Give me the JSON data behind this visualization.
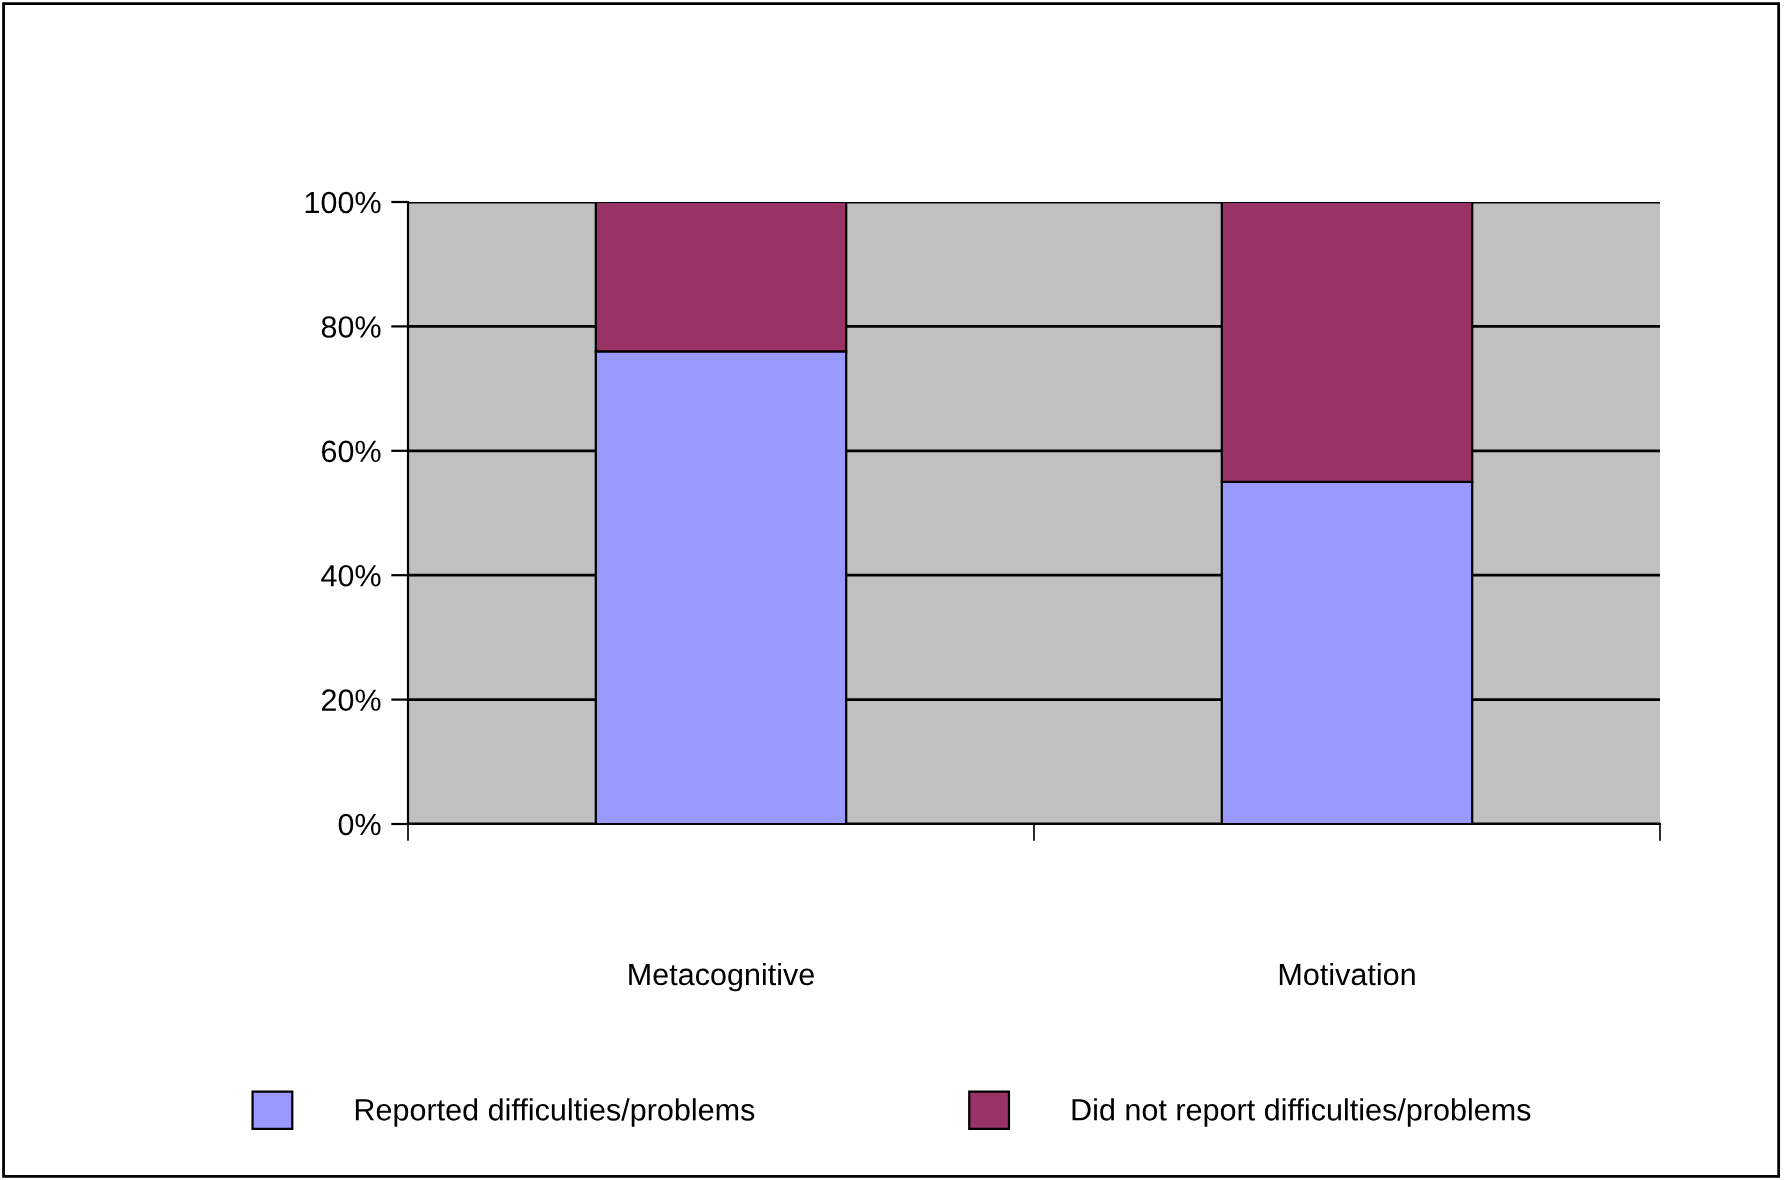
{
  "chart_data": {
    "type": "bar",
    "stacked": true,
    "categories": [
      "Metacognitive",
      "Motivation"
    ],
    "series": [
      {
        "name": "Reported difficulties/problems",
        "color": "#9999ff",
        "values": [
          76,
          55
        ]
      },
      {
        "name": "Did not report difficulties/problems",
        "color": "#993366",
        "values": [
          24,
          45
        ]
      }
    ],
    "ylim": [
      0,
      100
    ],
    "yticks": [
      {
        "value": 0,
        "label": "0%"
      },
      {
        "value": 20,
        "label": "20%"
      },
      {
        "value": 40,
        "label": "40%"
      },
      {
        "value": 60,
        "label": "60%"
      },
      {
        "value": 80,
        "label": "80%"
      },
      {
        "value": 100,
        "label": "100%"
      }
    ],
    "grid": "y",
    "legend": "bottom"
  }
}
